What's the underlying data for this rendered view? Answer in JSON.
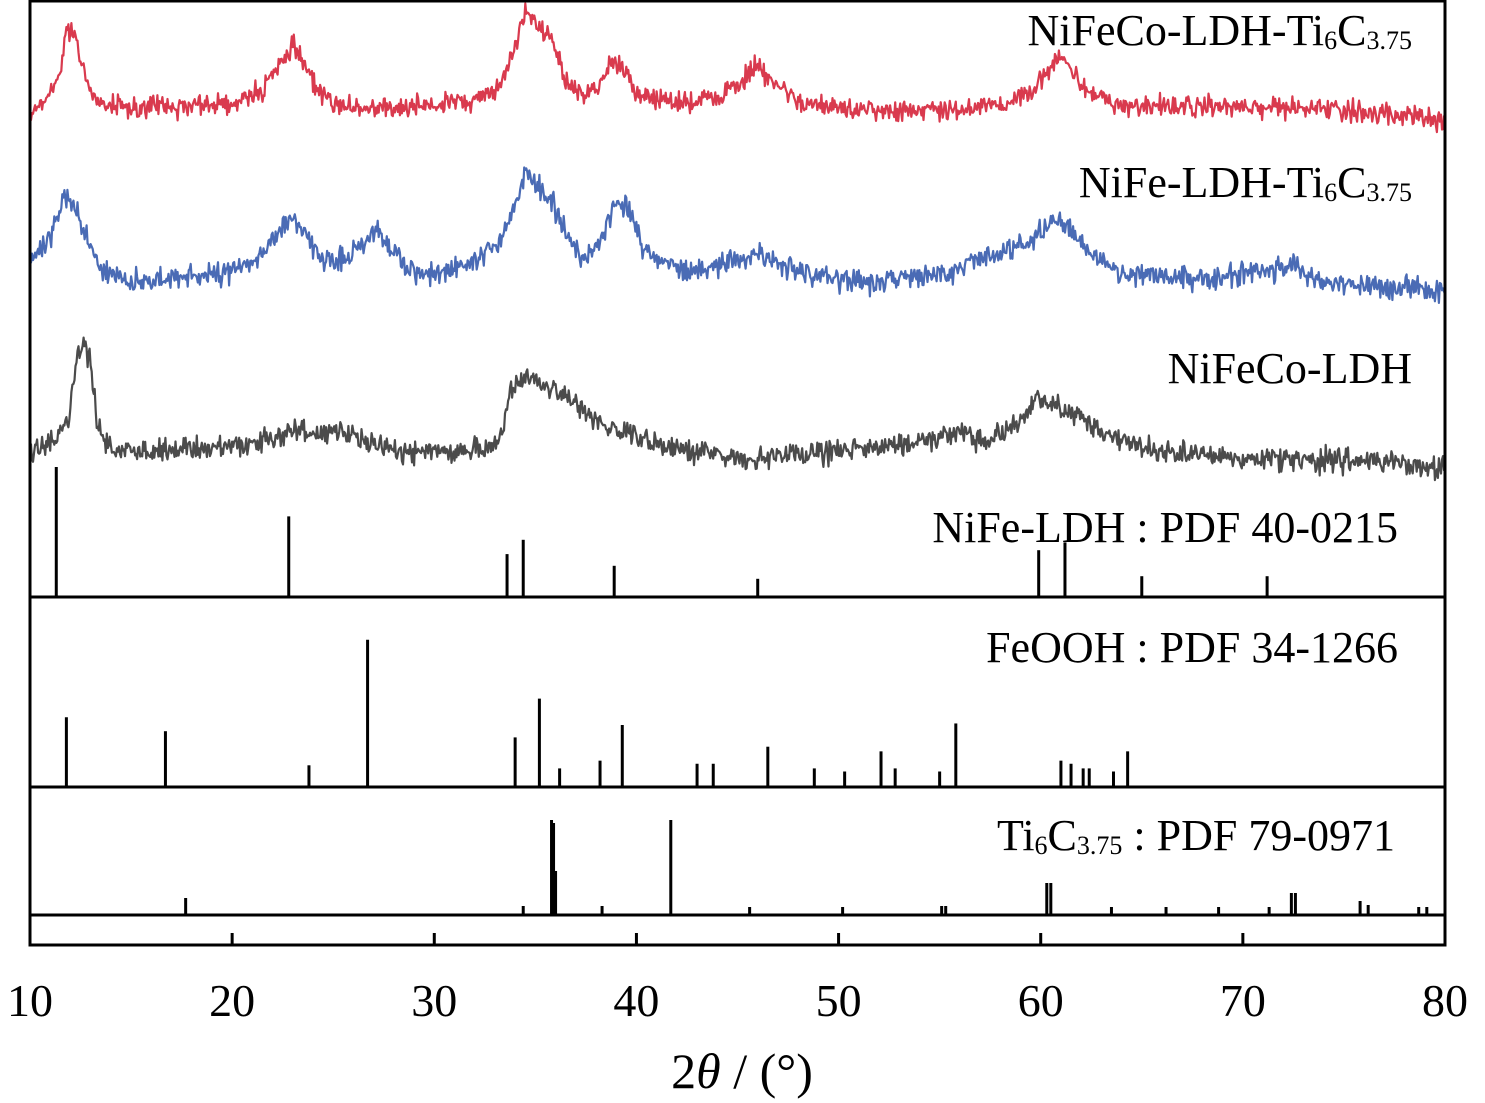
{
  "chart_data": {
    "type": "line",
    "xlabel_parts": {
      "num": "2",
      "theta": "θ",
      "rest": " / (°)"
    },
    "xlim": [
      10,
      80
    ],
    "x_ticks": [
      10,
      20,
      30,
      40,
      50,
      60,
      70,
      80
    ],
    "x_tick_labels": [
      "10",
      "20",
      "30",
      "40",
      "50",
      "60",
      "70",
      "80"
    ],
    "grid": false,
    "series": [
      {
        "label": {
          "main": "NiFeCo-LDH-Ti",
          "sub1": "6",
          "mid": "C",
          "sub2": "3.75"
        },
        "color": "#d93a4e",
        "baseline": 108,
        "noise": 9,
        "points": [
          [
            10,
            112
          ],
          [
            11,
            96
          ],
          [
            11.5,
            70
          ],
          [
            11.8,
            28
          ],
          [
            12.2,
            32
          ],
          [
            12.6,
            70
          ],
          [
            13.2,
            100
          ],
          [
            15,
            108
          ],
          [
            18,
            106
          ],
          [
            20,
            102
          ],
          [
            21.5,
            90
          ],
          [
            22.5,
            62
          ],
          [
            23,
            48
          ],
          [
            23.5,
            62
          ],
          [
            24.5,
            98
          ],
          [
            26,
            108
          ],
          [
            28,
            108
          ],
          [
            30,
            106
          ],
          [
            32,
            100
          ],
          [
            33,
            90
          ],
          [
            33.8,
            60
          ],
          [
            34.3,
            20
          ],
          [
            34.7,
            14
          ],
          [
            35.2,
            30
          ],
          [
            35.8,
            40
          ],
          [
            36.5,
            80
          ],
          [
            37.5,
            98
          ],
          [
            38.3,
            80
          ],
          [
            38.8,
            60
          ],
          [
            39.3,
            70
          ],
          [
            40,
            92
          ],
          [
            42,
            104
          ],
          [
            44,
            98
          ],
          [
            45.5,
            76
          ],
          [
            46,
            65
          ],
          [
            46.5,
            76
          ],
          [
            48,
            102
          ],
          [
            52,
            110
          ],
          [
            56,
            108
          ],
          [
            58,
            106
          ],
          [
            59.5,
            92
          ],
          [
            60.3,
            72
          ],
          [
            60.8,
            60
          ],
          [
            61.3,
            64
          ],
          [
            61.8,
            78
          ],
          [
            62.5,
            95
          ],
          [
            64,
            106
          ],
          [
            70,
            106
          ],
          [
            76,
            112
          ],
          [
            80,
            120
          ]
        ]
      },
      {
        "label": {
          "main": "NiFe-LDH-Ti",
          "sub1": "6",
          "mid": "C",
          "sub2": "3.75"
        },
        "color": "#4a6bb5",
        "baseline": 280,
        "noise": 10,
        "points": [
          [
            10,
            262
          ],
          [
            11,
            238
          ],
          [
            11.7,
            200
          ],
          [
            12.2,
            205
          ],
          [
            12.8,
            240
          ],
          [
            13.5,
            270
          ],
          [
            15,
            282
          ],
          [
            18,
            276
          ],
          [
            20,
            272
          ],
          [
            21.5,
            252
          ],
          [
            22.5,
            228
          ],
          [
            23,
            218
          ],
          [
            23.5,
            230
          ],
          [
            24.5,
            262
          ],
          [
            25.5,
            260
          ],
          [
            26.5,
            244
          ],
          [
            27.2,
            228
          ],
          [
            27.8,
            246
          ],
          [
            28.6,
            270
          ],
          [
            30,
            274
          ],
          [
            32,
            264
          ],
          [
            33.2,
            242
          ],
          [
            34,
            205
          ],
          [
            34.5,
            176
          ],
          [
            35.2,
            185
          ],
          [
            35.8,
            200
          ],
          [
            36.5,
            232
          ],
          [
            37.5,
            260
          ],
          [
            38.5,
            230
          ],
          [
            39,
            200
          ],
          [
            39.6,
            212
          ],
          [
            40.3,
            245
          ],
          [
            41,
            262
          ],
          [
            43,
            270
          ],
          [
            45,
            262
          ],
          [
            46,
            252
          ],
          [
            47,
            262
          ],
          [
            49,
            280
          ],
          [
            52,
            282
          ],
          [
            55,
            276
          ],
          [
            57,
            258
          ],
          [
            58.5,
            250
          ],
          [
            59.5,
            244
          ],
          [
            60.3,
            226
          ],
          [
            60.9,
            218
          ],
          [
            61.5,
            230
          ],
          [
            62.5,
            254
          ],
          [
            64,
            272
          ],
          [
            68,
            278
          ],
          [
            71,
            272
          ],
          [
            72.5,
            265
          ],
          [
            74,
            282
          ],
          [
            78,
            288
          ],
          [
            80,
            292
          ]
        ]
      },
      {
        "label": {
          "main": "NiFeCo-LDH"
        },
        "color": "#4b4b4b",
        "baseline": 450,
        "noise": 10,
        "points": [
          [
            10,
            455
          ],
          [
            11.3,
            440
          ],
          [
            11.9,
            420
          ],
          [
            12.3,
            365
          ],
          [
            12.6,
            338
          ],
          [
            13,
            365
          ],
          [
            13.4,
            430
          ],
          [
            14,
            450
          ],
          [
            16,
            452
          ],
          [
            18,
            448
          ],
          [
            20,
            446
          ],
          [
            22,
            440
          ],
          [
            23,
            432
          ],
          [
            24.5,
            432
          ],
          [
            25.5,
            430
          ],
          [
            27,
            446
          ],
          [
            29,
            452
          ],
          [
            31,
            452
          ],
          [
            33,
            446
          ],
          [
            33.4,
            428
          ],
          [
            33.7,
            392
          ],
          [
            34.3,
            378
          ],
          [
            35,
            382
          ],
          [
            36,
            392
          ],
          [
            37,
            405
          ],
          [
            38,
            422
          ],
          [
            39,
            430
          ],
          [
            40,
            438
          ],
          [
            42,
            448
          ],
          [
            44,
            454
          ],
          [
            46,
            460
          ],
          [
            48,
            455
          ],
          [
            50,
            450
          ],
          [
            51.5,
            447
          ],
          [
            53,
            445
          ],
          [
            55,
            438
          ],
          [
            56,
            432
          ],
          [
            57,
            442
          ],
          [
            58,
            435
          ],
          [
            59.2,
            420
          ],
          [
            59.7,
            398
          ],
          [
            60.4,
            402
          ],
          [
            61.2,
            412
          ],
          [
            62.2,
            420
          ],
          [
            63.5,
            436
          ],
          [
            65,
            448
          ],
          [
            68,
            456
          ],
          [
            72,
            460
          ],
          [
            76,
            460
          ],
          [
            80,
            468
          ]
        ]
      }
    ],
    "references": [
      {
        "label": {
          "main": "NiFe-LDH : PDF 40-0215"
        },
        "peaks": [
          [
            11.3,
            1.0
          ],
          [
            22.8,
            0.62
          ],
          [
            33.6,
            0.33
          ],
          [
            34.4,
            0.44
          ],
          [
            38.9,
            0.24
          ],
          [
            46.0,
            0.14
          ],
          [
            59.9,
            0.36
          ],
          [
            61.2,
            0.42
          ],
          [
            65.0,
            0.16
          ],
          [
            71.2,
            0.16
          ]
        ]
      },
      {
        "label": {
          "main": "FeOOH : PDF 34-1266"
        },
        "peaks": [
          [
            11.8,
            0.45
          ],
          [
            16.7,
            0.36
          ],
          [
            23.8,
            0.14
          ],
          [
            26.7,
            0.95
          ],
          [
            34.0,
            0.32
          ],
          [
            35.2,
            0.57
          ],
          [
            36.2,
            0.12
          ],
          [
            38.2,
            0.17
          ],
          [
            39.3,
            0.4
          ],
          [
            43.0,
            0.15
          ],
          [
            43.8,
            0.15
          ],
          [
            46.5,
            0.26
          ],
          [
            48.8,
            0.12
          ],
          [
            50.3,
            0.1
          ],
          [
            52.1,
            0.23
          ],
          [
            52.8,
            0.12
          ],
          [
            55.0,
            0.1
          ],
          [
            55.8,
            0.41
          ],
          [
            61.0,
            0.17
          ],
          [
            61.5,
            0.15
          ],
          [
            62.1,
            0.12
          ],
          [
            62.4,
            0.12
          ],
          [
            63.6,
            0.1
          ],
          [
            64.3,
            0.23
          ]
        ]
      },
      {
        "label": {
          "main": "Ti",
          "sub1": "6",
          "mid": "C",
          "sub2": "3.75",
          "tail": " : PDF 79-0971"
        },
        "peaks": [
          [
            17.7,
            0.17
          ],
          [
            34.4,
            0.09
          ],
          [
            35.8,
            0.95
          ],
          [
            35.9,
            0.92
          ],
          [
            36.0,
            0.44
          ],
          [
            38.3,
            0.09
          ],
          [
            41.7,
            0.95
          ],
          [
            45.6,
            0.08
          ],
          [
            50.2,
            0.08
          ],
          [
            55.1,
            0.09
          ],
          [
            55.3,
            0.09
          ],
          [
            60.3,
            0.32
          ],
          [
            60.5,
            0.32
          ],
          [
            63.5,
            0.08
          ],
          [
            66.2,
            0.08
          ],
          [
            68.8,
            0.08
          ],
          [
            71.3,
            0.08
          ],
          [
            72.4,
            0.22
          ],
          [
            72.6,
            0.22
          ],
          [
            75.8,
            0.14
          ],
          [
            76.2,
            0.1
          ],
          [
            78.7,
            0.08
          ],
          [
            79.1,
            0.08
          ]
        ]
      }
    ]
  }
}
